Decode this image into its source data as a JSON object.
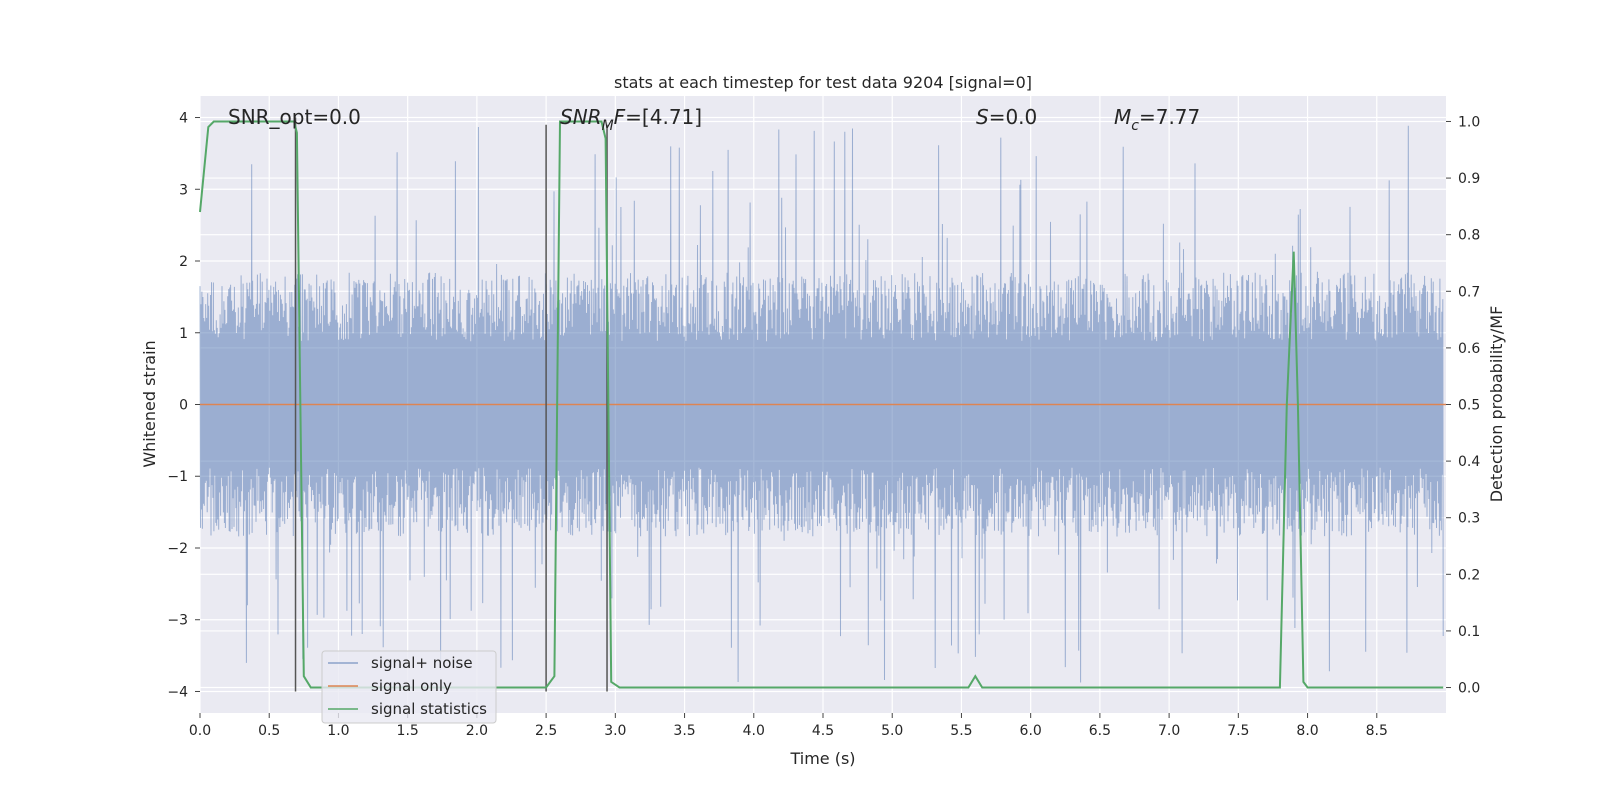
{
  "chart_data": {
    "type": "line",
    "title": "stats at each timestep for test data 9204 [signal=0]",
    "xlabel": "Time (s)",
    "ylabel_left": "Whitened strain",
    "ylabel_right": "Detection probability/MF",
    "xlim": [
      0.0,
      9.0
    ],
    "ylim_left": [
      -4.3,
      4.3
    ],
    "ylim_right": [
      -0.045,
      1.045
    ],
    "x_ticks": [
      "0.0",
      "0.5",
      "1.0",
      "1.5",
      "2.0",
      "2.5",
      "3.0",
      "3.5",
      "4.0",
      "4.5",
      "5.0",
      "5.5",
      "6.0",
      "6.5",
      "7.0",
      "7.5",
      "8.0",
      "8.5"
    ],
    "y_ticks_left": [
      "−4",
      "−3",
      "−2",
      "−1",
      "0",
      "1",
      "2",
      "3",
      "4"
    ],
    "y_ticks_right": [
      "0.0",
      "0.1",
      "0.2",
      "0.3",
      "0.4",
      "0.5",
      "0.6",
      "0.7",
      "0.8",
      "0.9",
      "1.0"
    ],
    "grid": true,
    "legend_placement": "lower-left",
    "annotations": {
      "snr_opt": "SNR_opt=0.0",
      "snr_mf_italic": "SNR",
      "snr_mf_sub": "M",
      "snr_mf_rest_italic": "F",
      "snr_mf_value": "=[4.71]",
      "s_italic": "S",
      "s_value": "=0.0",
      "mc_italic": "M",
      "mc_sub": "c",
      "mc_value": "=7.77"
    },
    "series": [
      {
        "name": "signal+ noise",
        "color": "#4c72b0",
        "amplitude_typical": 1.6,
        "amplitude_peak": 3.9
      },
      {
        "name": "signal only",
        "color": "#dd8452",
        "values": "zero"
      },
      {
        "name": "signal statistics",
        "color": "#55a868",
        "axis": "right",
        "x": [
          0.0,
          0.06,
          0.1,
          0.5,
          0.68,
          0.7,
          0.75,
          0.8,
          1.5,
          2.2,
          2.5,
          2.56,
          2.6,
          2.85,
          2.9,
          2.93,
          2.97,
          3.03,
          3.5,
          4.5,
          5.5,
          5.55,
          5.6,
          5.65,
          5.7,
          6.0,
          7.0,
          7.8,
          7.85,
          7.9,
          7.93,
          7.97,
          8.0,
          8.5,
          8.98
        ],
        "values": [
          0.84,
          0.99,
          1.0,
          1.0,
          1.0,
          0.98,
          0.02,
          0.0,
          0.0,
          0.0,
          0.0,
          0.02,
          1.0,
          1.0,
          1.0,
          0.97,
          0.01,
          0.0,
          0.0,
          0.0,
          0.0,
          0.0,
          0.02,
          0.0,
          0.0,
          0.0,
          0.0,
          0.0,
          0.5,
          0.77,
          0.5,
          0.01,
          0.0,
          0.0,
          0.0
        ]
      }
    ],
    "vertical_markers": [
      {
        "x": 0.69,
        "y_top": 4.0
      },
      {
        "x": 2.5,
        "y_top": 3.9
      },
      {
        "x": 2.94,
        "y_top": 3.9
      }
    ]
  }
}
